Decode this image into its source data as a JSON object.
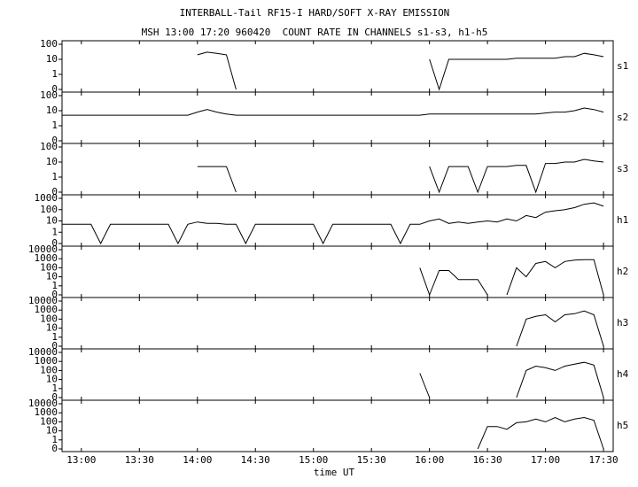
{
  "chart_data": {
    "type": "line",
    "title": "INTERBALL-Tail RF15-I HARD/SOFT X-RAY EMISSION",
    "subtitle": "MSH 13:00 17:20 960420  COUNT RATE IN CHANNELS s1-s3, h1-h5",
    "x_label": "time UT",
    "log_scale": true,
    "color": "#000000",
    "xlim": [
      "12:50",
      "17:35"
    ],
    "xticks": [
      "13:00",
      "13:30",
      "14:00",
      "14:30",
      "15:00",
      "15:30",
      "16:00",
      "16:30",
      "17:00",
      "17:30"
    ],
    "x": [
      "12:50",
      "12:55",
      "13:00",
      "13:05",
      "13:10",
      "13:15",
      "13:20",
      "13:25",
      "13:30",
      "13:35",
      "13:40",
      "13:45",
      "13:50",
      "13:55",
      "14:00",
      "14:05",
      "14:10",
      "14:15",
      "14:20",
      "14:25",
      "14:30",
      "14:35",
      "14:40",
      "14:45",
      "14:50",
      "14:55",
      "15:00",
      "15:05",
      "15:10",
      "15:15",
      "15:20",
      "15:25",
      "15:30",
      "15:35",
      "15:40",
      "15:45",
      "15:50",
      "15:55",
      "16:00",
      "16:05",
      "16:10",
      "16:15",
      "16:20",
      "16:25",
      "16:30",
      "16:35",
      "16:40",
      "16:45",
      "16:50",
      "16:55",
      "17:00",
      "17:05",
      "17:10",
      "17:15",
      "17:20",
      "17:25",
      "17:30",
      "17:35"
    ],
    "series": [
      {
        "name": "s1",
        "ylim": [
          0,
          100
        ],
        "yticks": [
          100,
          10,
          1,
          0
        ],
        "values": [
          null,
          null,
          null,
          null,
          null,
          null,
          null,
          null,
          null,
          null,
          null,
          null,
          null,
          null,
          20,
          30,
          25,
          20,
          0,
          null,
          null,
          null,
          null,
          null,
          null,
          null,
          null,
          null,
          null,
          null,
          null,
          null,
          null,
          null,
          null,
          null,
          null,
          null,
          10,
          0,
          10,
          10,
          10,
          10,
          10,
          10,
          10,
          12,
          12,
          12,
          12,
          12,
          15,
          15,
          25,
          20,
          15,
          null
        ]
      },
      {
        "name": "s2",
        "ylim": [
          0,
          100
        ],
        "yticks": [
          100,
          10,
          1,
          0
        ],
        "values": [
          5,
          5,
          5,
          5,
          5,
          5,
          5,
          5,
          5,
          5,
          5,
          5,
          5,
          5,
          8,
          12,
          8,
          6,
          5,
          5,
          5,
          5,
          5,
          5,
          5,
          5,
          5,
          5,
          5,
          5,
          5,
          5,
          5,
          5,
          5,
          5,
          5,
          5,
          6,
          6,
          6,
          6,
          6,
          6,
          6,
          6,
          6,
          6,
          6,
          6,
          7,
          8,
          8,
          10,
          15,
          12,
          8,
          null
        ]
      },
      {
        "name": "s3",
        "ylim": [
          0,
          100
        ],
        "yticks": [
          100,
          10,
          1,
          0
        ],
        "values": [
          null,
          null,
          null,
          null,
          null,
          null,
          null,
          null,
          null,
          null,
          null,
          null,
          null,
          null,
          5,
          5,
          5,
          5,
          0,
          null,
          null,
          null,
          null,
          null,
          null,
          null,
          null,
          null,
          null,
          null,
          null,
          null,
          null,
          null,
          null,
          null,
          null,
          null,
          5,
          0,
          5,
          5,
          5,
          0,
          5,
          5,
          5,
          6,
          6,
          0,
          8,
          8,
          10,
          10,
          15,
          12,
          10,
          null
        ]
      },
      {
        "name": "h1",
        "ylim": [
          0,
          1000
        ],
        "yticks": [
          1000,
          100,
          10,
          1,
          0
        ],
        "values": [
          5,
          5,
          5,
          5,
          0,
          5,
          5,
          5,
          5,
          5,
          5,
          5,
          0,
          5,
          8,
          6,
          6,
          5,
          5,
          0,
          5,
          5,
          5,
          5,
          5,
          5,
          5,
          0,
          5,
          5,
          5,
          5,
          5,
          5,
          5,
          0,
          5,
          5,
          10,
          15,
          6,
          8,
          6,
          8,
          10,
          8,
          15,
          10,
          30,
          20,
          60,
          80,
          100,
          150,
          300,
          400,
          200,
          null
        ]
      },
      {
        "name": "h2",
        "ylim": [
          0,
          10000
        ],
        "yticks": [
          10000,
          1000,
          100,
          10,
          1,
          0
        ],
        "values": [
          null,
          null,
          null,
          null,
          null,
          null,
          null,
          null,
          null,
          null,
          null,
          null,
          null,
          null,
          null,
          null,
          null,
          null,
          null,
          null,
          null,
          null,
          null,
          null,
          null,
          null,
          null,
          null,
          null,
          null,
          null,
          null,
          null,
          null,
          null,
          null,
          null,
          100,
          0,
          50,
          50,
          5,
          5,
          5,
          0,
          null,
          0,
          100,
          10,
          300,
          500,
          100,
          500,
          700,
          800,
          800,
          0,
          null
        ]
      },
      {
        "name": "h3",
        "ylim": [
          0,
          10000
        ],
        "yticks": [
          10000,
          1000,
          100,
          10,
          1,
          0
        ],
        "values": [
          null,
          null,
          null,
          null,
          null,
          null,
          null,
          null,
          null,
          null,
          null,
          null,
          null,
          null,
          null,
          null,
          null,
          null,
          null,
          null,
          null,
          null,
          null,
          null,
          null,
          null,
          null,
          null,
          null,
          null,
          null,
          null,
          null,
          null,
          null,
          null,
          null,
          null,
          null,
          null,
          null,
          null,
          null,
          null,
          null,
          null,
          null,
          0,
          100,
          200,
          300,
          50,
          300,
          400,
          800,
          300,
          0,
          null
        ]
      },
      {
        "name": "h4",
        "ylim": [
          0,
          10000
        ],
        "yticks": [
          10000,
          1000,
          100,
          10,
          1,
          0
        ],
        "values": [
          null,
          null,
          null,
          null,
          null,
          null,
          null,
          null,
          null,
          null,
          null,
          null,
          null,
          null,
          null,
          null,
          null,
          null,
          null,
          null,
          null,
          null,
          null,
          null,
          null,
          null,
          null,
          null,
          null,
          null,
          null,
          null,
          null,
          null,
          null,
          null,
          null,
          50,
          0,
          null,
          null,
          null,
          null,
          null,
          null,
          null,
          null,
          0,
          100,
          300,
          200,
          100,
          300,
          500,
          800,
          400,
          0,
          null
        ]
      },
      {
        "name": "h5",
        "ylim": [
          0,
          10000
        ],
        "yticks": [
          10000,
          1000,
          100,
          10,
          1,
          0
        ],
        "values": [
          null,
          null,
          null,
          null,
          null,
          null,
          null,
          null,
          null,
          null,
          null,
          null,
          null,
          null,
          null,
          null,
          null,
          null,
          null,
          null,
          null,
          null,
          null,
          null,
          null,
          null,
          null,
          null,
          null,
          null,
          null,
          null,
          null,
          null,
          null,
          null,
          null,
          null,
          null,
          null,
          null,
          null,
          null,
          0,
          30,
          30,
          15,
          80,
          100,
          200,
          100,
          300,
          100,
          200,
          300,
          150,
          0,
          null
        ]
      }
    ]
  }
}
